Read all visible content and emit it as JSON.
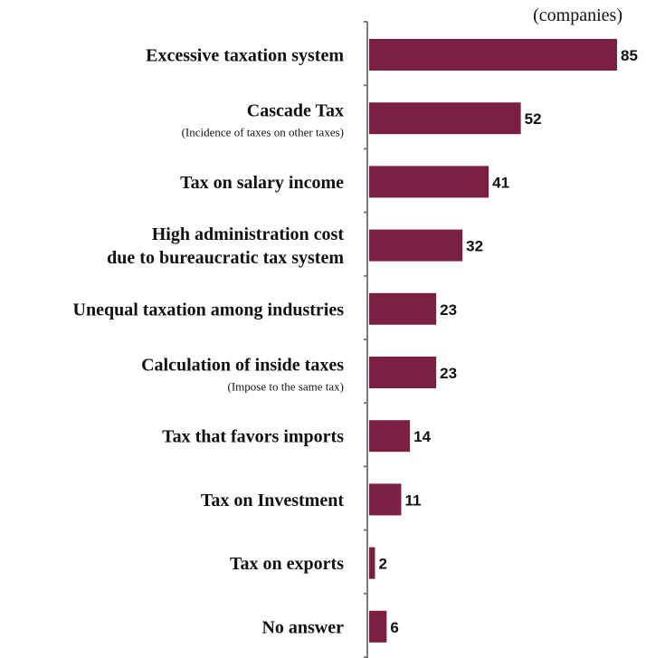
{
  "chart_data": {
    "type": "bar",
    "orientation": "horizontal",
    "unit_label": "(companies)",
    "bar_color": "#7b1f45",
    "xlim": [
      0,
      90
    ],
    "categories": [
      {
        "label": [
          "Excessive taxation system"
        ],
        "note": "",
        "value": 85
      },
      {
        "label": [
          "Cascade Tax"
        ],
        "note": "(Incidence of taxes on other taxes)",
        "value": 52
      },
      {
        "label": [
          "Tax on salary income"
        ],
        "note": "",
        "value": 41
      },
      {
        "label": [
          "High administration cost",
          "due to bureaucratic tax system"
        ],
        "note": "",
        "value": 32
      },
      {
        "label": [
          "Unequal taxation among industries"
        ],
        "note": "",
        "value": 23
      },
      {
        "label": [
          "Calculation of inside taxes"
        ],
        "note": "(Impose to the same tax)",
        "value": 23
      },
      {
        "label": [
          "Tax that favors imports"
        ],
        "note": "",
        "value": 14
      },
      {
        "label": [
          "Tax on Investment"
        ],
        "note": "",
        "value": 11
      },
      {
        "label": [
          "Tax on exports"
        ],
        "note": "",
        "value": 2
      },
      {
        "label": [
          "No answer"
        ],
        "note": "",
        "value": 6
      }
    ]
  }
}
